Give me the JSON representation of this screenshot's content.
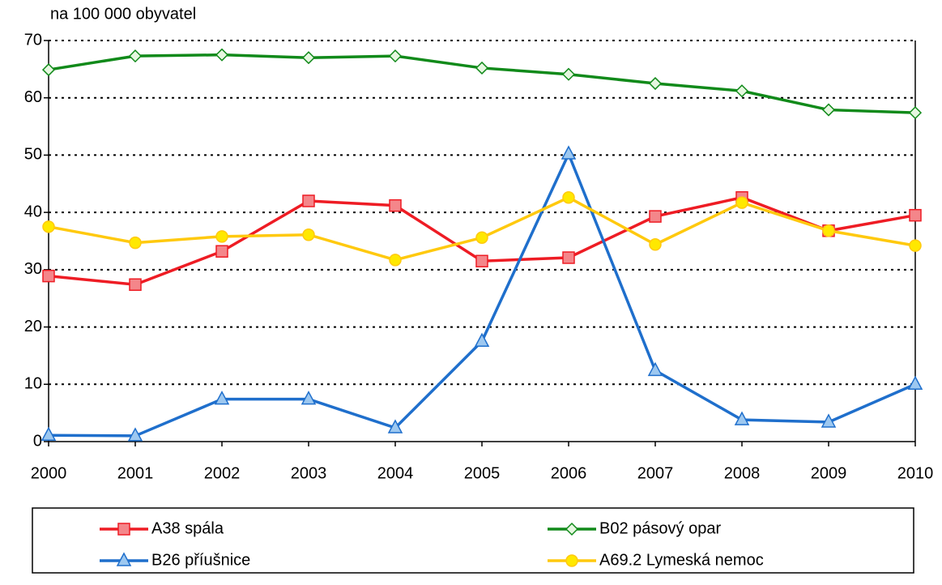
{
  "chart_data": {
    "type": "line",
    "y_label": "na 100 000 obyvatel",
    "categories": [
      "2000",
      "2001",
      "2002",
      "2003",
      "2004",
      "2005",
      "2006",
      "2007",
      "2008",
      "2009",
      "2010"
    ],
    "ylim": [
      0,
      70
    ],
    "yticks": [
      0,
      10,
      20,
      30,
      40,
      50,
      60,
      70
    ],
    "grid": true,
    "legend": "bottom",
    "series": [
      {
        "name": "A38 spála",
        "color": "#ee1c24",
        "marker": "square",
        "marker_fill": "#f4868a",
        "values": [
          28.9,
          27.4,
          33.2,
          42.0,
          41.2,
          31.5,
          32.1,
          39.3,
          42.6,
          36.8,
          39.5
        ]
      },
      {
        "name": "B02 pásový opar",
        "color": "#118a1a",
        "marker": "diamond",
        "marker_fill": "#e6f7e0",
        "values": [
          64.9,
          67.3,
          67.5,
          67.0,
          67.3,
          65.2,
          64.1,
          62.5,
          61.2,
          57.9,
          57.4
        ]
      },
      {
        "name": "B26 příušnice",
        "color": "#1f6fcc",
        "marker": "triangle",
        "marker_fill": "#9dc8f0",
        "values": [
          1.1,
          1.0,
          7.4,
          7.4,
          2.4,
          17.5,
          50.2,
          12.4,
          3.8,
          3.4,
          10.0
        ]
      },
      {
        "name": "A69.2 Lymeská nemoc",
        "color": "#ffc90e",
        "marker": "circle",
        "marker_fill": "#ffe800",
        "values": [
          37.5,
          34.7,
          35.8,
          36.1,
          31.7,
          35.6,
          42.6,
          34.4,
          41.7,
          36.8,
          34.2
        ]
      }
    ]
  }
}
